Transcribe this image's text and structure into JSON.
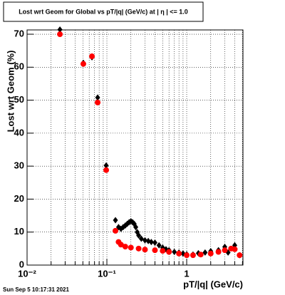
{
  "chart_data": {
    "type": "scatter",
    "title": "Lost wrt Geom for Global vs pT/|q| (GeV/c) at |  η | <= 1.0",
    "x_label": "pT/|q| (GeV/c)",
    "y_label": "Lost wrt Geom (%)",
    "footer": "Sun Sep  5 10:17:31 2021",
    "log_x": true,
    "grid": true,
    "xlim": [
      0.01,
      5.07
    ],
    "ylim": [
      0,
      71.3
    ],
    "xticks": [
      {
        "value": 0.01,
        "label": "10⁻²"
      },
      {
        "value": 0.1,
        "label": "10⁻¹"
      },
      1
    ],
    "xminor": [
      0.02,
      0.03,
      0.04,
      0.05,
      0.06,
      0.07,
      0.08,
      0.09,
      0.2,
      0.3,
      0.4,
      0.5,
      0.6,
      0.7,
      0.8,
      0.9,
      2,
      3,
      4,
      5
    ],
    "yticks": [
      0,
      10,
      20,
      30,
      40,
      50,
      60,
      70
    ],
    "series": [
      {
        "color": "#000000",
        "marker": "diamond",
        "x": [
          0.0258,
          0.0507,
          0.065,
          0.0766,
          0.098,
          0.128,
          0.14,
          0.15,
          0.16,
          0.17,
          0.18,
          0.19,
          0.2,
          0.21,
          0.22,
          0.23,
          0.24,
          0.25,
          0.27,
          0.3,
          0.33,
          0.36,
          0.4,
          0.45,
          0.5,
          0.55,
          0.6,
          0.7,
          0.8,
          0.9,
          1.0,
          1.2,
          1.4,
          1.7,
          2.0,
          2.5,
          3.0,
          3.3,
          4.0,
          4.6
        ],
        "values": [
          71.4,
          61.3,
          63.0,
          50.8,
          30.2,
          13.6,
          11.5,
          11.0,
          11.5,
          12.0,
          12.5,
          13.0,
          13.3,
          13.0,
          12.5,
          11.5,
          10.0,
          9.0,
          8.0,
          7.5,
          7.3,
          7.0,
          6.8,
          6.0,
          5.3,
          4.8,
          4.5,
          4.0,
          3.8,
          3.5,
          3.3,
          3.2,
          3.6,
          3.8,
          4.2,
          4.5,
          5.5,
          3.8,
          6.0,
          3.0
        ]
      },
      {
        "color": "#ff0000",
        "marker": "circle",
        "x": [
          0.0258,
          0.0507,
          0.065,
          0.0766,
          0.098,
          0.128,
          0.14,
          0.15,
          0.17,
          0.2,
          0.25,
          0.3,
          0.4,
          0.5,
          0.6,
          0.8,
          1.0,
          1.2,
          1.5,
          2.0,
          2.5,
          3.0,
          3.6,
          4.0,
          4.6
        ],
        "values": [
          70.0,
          61.0,
          63.3,
          49.3,
          28.8,
          10.4,
          7.0,
          6.2,
          5.6,
          5.3,
          5.0,
          4.7,
          4.5,
          4.3,
          4.0,
          3.5,
          3.0,
          3.0,
          3.2,
          3.5,
          4.0,
          4.5,
          5.0,
          4.8,
          3.0
        ]
      }
    ]
  }
}
